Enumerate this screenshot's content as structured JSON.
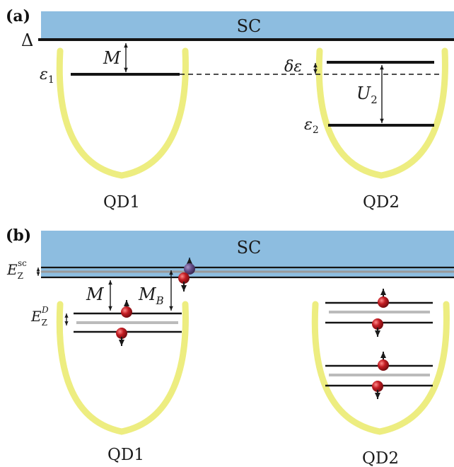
{
  "panel_a": {
    "tag": "(a)",
    "sc_label": "SC",
    "delta_label": "Δ",
    "m_label": "M",
    "eps1_label": "ε",
    "eps1_sub": "1",
    "deltaeps_label": "δε",
    "u2_label": "U",
    "u2_sub": "2",
    "eps2_label": "ε",
    "eps2_sub": "2",
    "qd1_label": "QD1",
    "qd2_label": "QD2"
  },
  "panel_b": {
    "tag": "(b)",
    "sc_label": "SC",
    "ezsc_label": "E",
    "ezsc_sub": "Z",
    "ezsc_sup": "sc",
    "m_label": "M",
    "mb_label": "M",
    "mb_sub": "B",
    "ezd_label": "E",
    "ezd_sub": "Z",
    "ezd_sup": "D",
    "qd1_label": "QD1",
    "qd2_label": "QD2"
  },
  "colors": {
    "sc": "#8dbde0",
    "well": "#eded80",
    "level": "#141414",
    "gray_level": "#bbbbbb",
    "spin": "#b8191f",
    "spin_sc": "#6a4d86"
  }
}
